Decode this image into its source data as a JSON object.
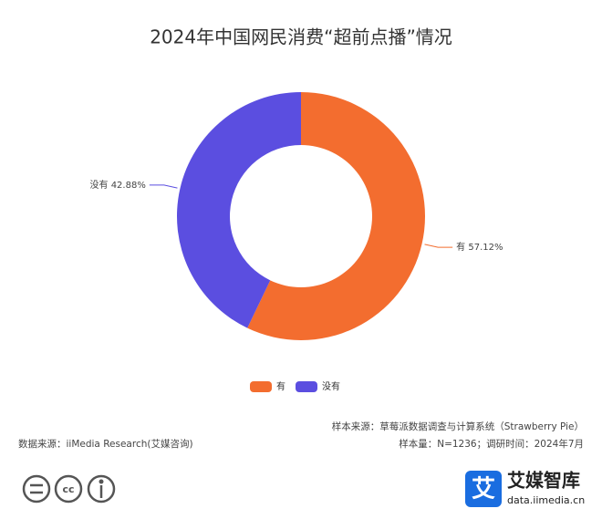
{
  "chart_data": {
    "type": "donut",
    "title": "2024年中国网民消费“超前点播”情况",
    "categories": [
      "有",
      "没有"
    ],
    "values": [
      57.12,
      42.88
    ],
    "value_labels": [
      "57.12%",
      "42.88%"
    ],
    "colors": [
      "#f36d2f",
      "#5b4ee0"
    ],
    "legend": "bottom"
  },
  "footer": {
    "sample_source": "样本来源：草莓派数据调查与计算系统（Strawberry Pie）",
    "sample_size": "样本量：N=1236；调研时间：2024年7月",
    "data_source": "数据来源：iiMedia Research(艾媒咨询)"
  },
  "brand": {
    "icon": "艾",
    "name": "艾媒智库",
    "url": "data.iimedia.cn"
  }
}
